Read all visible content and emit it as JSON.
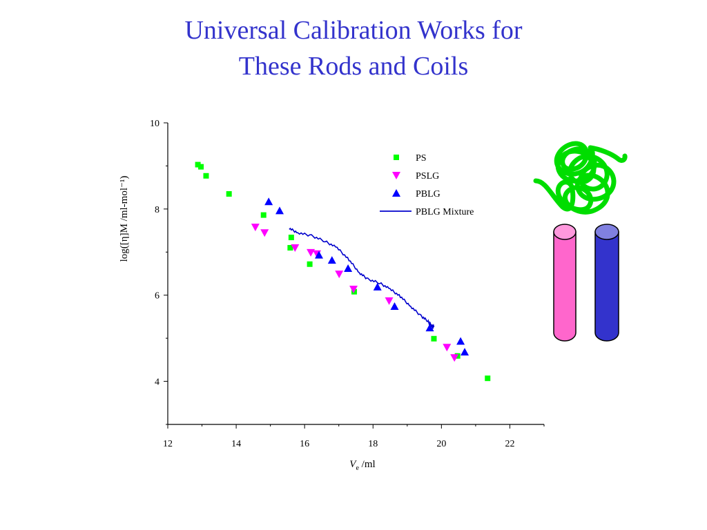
{
  "title": {
    "line1": "Universal Calibration Works for",
    "line2": "These Rods and Coils"
  },
  "chart_data": {
    "type": "scatter",
    "xlabel": "V",
    "xlabel_sub": "e",
    "xlabel_unit": " /ml",
    "ylabel": "log([η]M  /ml-mol⁻¹)",
    "xlim": [
      12,
      23
    ],
    "ylim": [
      3,
      10
    ],
    "xticks": [
      12,
      14,
      16,
      18,
      20,
      22
    ],
    "yticks": [
      4,
      6,
      8,
      10
    ],
    "legend_position": "top-right",
    "grid": false,
    "series": [
      {
        "name": "PS",
        "marker": "square",
        "color": "#00ff00",
        "points": [
          [
            12.88,
            9.03
          ],
          [
            12.97,
            8.98
          ],
          [
            13.12,
            8.77
          ],
          [
            13.79,
            8.35
          ],
          [
            14.8,
            7.86
          ],
          [
            15.61,
            7.34
          ],
          [
            15.58,
            7.1
          ],
          [
            16.15,
            6.72
          ],
          [
            17.45,
            6.08
          ],
          [
            19.78,
            4.99
          ],
          [
            20.47,
            4.59
          ],
          [
            21.35,
            4.07
          ]
        ]
      },
      {
        "name": "PSLG",
        "marker": "triangle-down",
        "color": "#ff00ff",
        "points": [
          [
            14.56,
            7.58
          ],
          [
            14.83,
            7.45
          ],
          [
            15.72,
            7.1
          ],
          [
            16.18,
            6.99
          ],
          [
            16.36,
            6.96
          ],
          [
            17.01,
            6.49
          ],
          [
            17.43,
            6.14
          ],
          [
            18.47,
            5.87
          ],
          [
            20.16,
            4.79
          ],
          [
            20.38,
            4.55
          ]
        ]
      },
      {
        "name": "PBLG",
        "marker": "triangle-up",
        "color": "#0000ff",
        "points": [
          [
            14.95,
            8.17
          ],
          [
            15.27,
            7.96
          ],
          [
            16.42,
            6.93
          ],
          [
            16.8,
            6.81
          ],
          [
            17.27,
            6.62
          ],
          [
            18.13,
            6.19
          ],
          [
            18.63,
            5.74
          ],
          [
            19.66,
            5.24
          ],
          [
            20.56,
            4.93
          ],
          [
            20.68,
            4.68
          ]
        ]
      },
      {
        "name": "PBLG Mixture",
        "marker": "line",
        "color": "#0000cc",
        "points": [
          [
            15.55,
            7.55
          ],
          [
            15.8,
            7.45
          ],
          [
            16.2,
            7.38
          ],
          [
            16.6,
            7.25
          ],
          [
            16.95,
            7.1
          ],
          [
            17.3,
            6.82
          ],
          [
            17.6,
            6.52
          ],
          [
            17.85,
            6.37
          ],
          [
            18.2,
            6.28
          ],
          [
            18.5,
            6.14
          ],
          [
            18.8,
            5.97
          ],
          [
            19.1,
            5.74
          ],
          [
            19.4,
            5.52
          ],
          [
            19.6,
            5.4
          ],
          [
            19.7,
            5.3
          ],
          [
            19.78,
            5.26
          ]
        ]
      }
    ]
  },
  "illustration": {
    "coil_color": "#00dd00",
    "rod_colors": [
      "#ff66cc",
      "#3333cc"
    ]
  }
}
